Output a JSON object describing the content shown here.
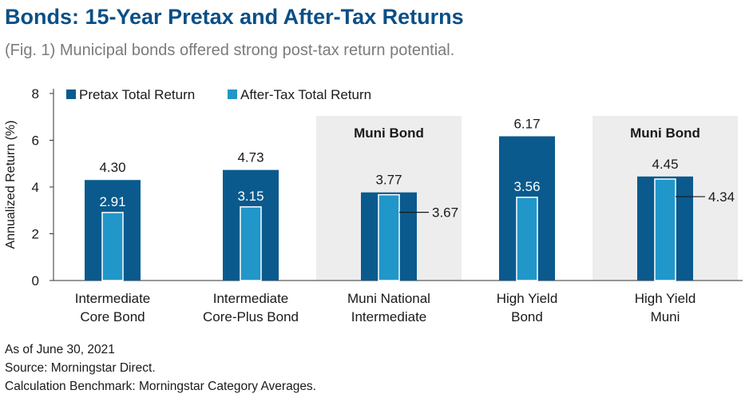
{
  "title": "Bonds: 15-Year Pretax and After-Tax Returns",
  "subtitle": "(Fig. 1) Municipal bonds offered strong post-tax return potential.",
  "footnotes": [
    "As of June 30, 2021",
    "Source: Morningstar Direct.",
    "Calculation Benchmark: Morningstar Category Averages."
  ],
  "colors": {
    "pretax": "#0a5a8e",
    "aftertax": "#2196c9",
    "highlight_band": "#ededed",
    "title": "#0a4f86"
  },
  "chart_data": {
    "type": "bar",
    "ylabel": "Annualized Return (%)",
    "xlabel": "",
    "ylim": [
      0,
      8
    ],
    "yticks": [
      0,
      2,
      4,
      6,
      8
    ],
    "grid": false,
    "legend_position": "top-left",
    "categories": [
      [
        "Intermediate",
        "Core Bond"
      ],
      [
        "Intermediate",
        "Core-Plus Bond"
      ],
      [
        "Muni National",
        "Intermediate"
      ],
      [
        "High Yield",
        "Bond"
      ],
      [
        "High Yield",
        "Muni"
      ]
    ],
    "series": [
      {
        "name": "Pretax Total Return",
        "values": [
          4.3,
          4.73,
          3.77,
          6.17,
          4.45
        ],
        "labels": [
          "4.30",
          "4.73",
          "3.77",
          "6.17",
          "4.45"
        ]
      },
      {
        "name": "After-Tax Total Return",
        "values": [
          2.91,
          3.15,
          3.67,
          3.56,
          4.34
        ],
        "labels": [
          "2.91",
          "3.15",
          "3.67",
          "3.56",
          "4.34"
        ]
      }
    ],
    "highlighted_categories": [
      2,
      4
    ],
    "highlight_label": "Muni Bond"
  }
}
